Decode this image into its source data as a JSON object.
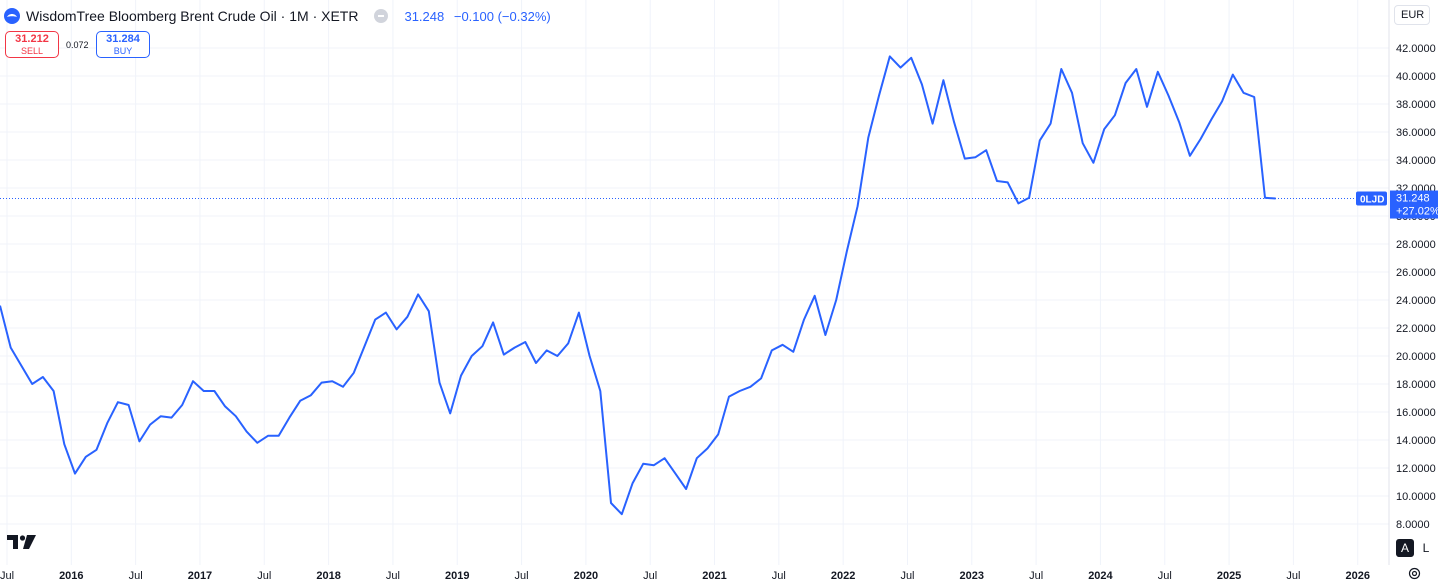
{
  "header": {
    "title": "WisdomTree Bloomberg Brent Crude Oil · 1M · XETR",
    "price": "31.248",
    "change": "−0.100 (−0.32%)"
  },
  "trade": {
    "sell_price": "31.212",
    "sell_label": "SELL",
    "spread": "0.072",
    "buy_price": "31.284",
    "buy_label": "BUY"
  },
  "currency": "EUR",
  "scale_buttons": {
    "auto": "A",
    "log": "L"
  },
  "colors": {
    "line": "#2962ff",
    "grid": "#f0f3fa",
    "sell": "#f23645"
  },
  "chart_data": {
    "type": "line",
    "interval": "1M",
    "x_ticks": [
      "Jul",
      "2016",
      "Jul",
      "2017",
      "Jul",
      "2018",
      "Jul",
      "2019",
      "Jul",
      "2020",
      "Jul",
      "2021",
      "Jul",
      "2022",
      "Jul",
      "2023",
      "Jul",
      "2024",
      "Jul",
      "2025",
      "Jul",
      "2026"
    ],
    "x_tick_bold": [
      false,
      true,
      false,
      true,
      false,
      true,
      false,
      true,
      false,
      true,
      false,
      true,
      false,
      true,
      false,
      true,
      false,
      true,
      false,
      true,
      false,
      true
    ],
    "y_ticks": [
      "8.0000",
      "10.0000",
      "12.0000",
      "14.0000",
      "16.0000",
      "18.0000",
      "20.0000",
      "22.0000",
      "24.0000",
      "26.0000",
      "28.0000",
      "30.0000",
      "32.0000",
      "34.0000",
      "36.0000",
      "38.0000",
      "40.0000",
      "42.0000"
    ],
    "ylim": [
      8,
      42
    ],
    "start": "2015-07",
    "series": [
      {
        "values": [
          23.6,
          20.6,
          19.3,
          18.0,
          18.5,
          17.5,
          13.7,
          11.6,
          12.8,
          13.3,
          15.2,
          16.7,
          16.5,
          13.9,
          15.1,
          15.7,
          15.6,
          16.5,
          18.2,
          17.5,
          17.5,
          16.4,
          15.7,
          14.6,
          13.8,
          14.3,
          14.3,
          15.6,
          16.8,
          17.2,
          18.1,
          18.2,
          17.8,
          18.8,
          20.7,
          22.6,
          23.1,
          21.9,
          22.8,
          24.4,
          23.2,
          18.1,
          15.9,
          18.6,
          20.0,
          20.7,
          22.4,
          20.1,
          20.6,
          21.0,
          19.5,
          20.4,
          20.0,
          20.9,
          23.1,
          20.0,
          17.5,
          9.5,
          8.7,
          10.9,
          12.3,
          12.2,
          12.7,
          11.6,
          10.5,
          12.7,
          13.4,
          14.4,
          17.1,
          17.5,
          17.8,
          18.4,
          20.4,
          20.8,
          20.3,
          22.6,
          24.3,
          21.5,
          24.0,
          27.5,
          30.7,
          35.6,
          38.6,
          41.4,
          40.6,
          41.3,
          39.4,
          36.6,
          39.7,
          36.7,
          34.1,
          34.2,
          34.7,
          32.5,
          32.4,
          30.9,
          31.3,
          35.4,
          36.6,
          40.5,
          38.8,
          35.2,
          33.8,
          36.2,
          37.2,
          39.5,
          40.5,
          37.8,
          40.3,
          38.6,
          36.7,
          34.3,
          35.5,
          36.9,
          38.2,
          40.1,
          38.8,
          38.5,
          31.3,
          31.248
        ]
      }
    ],
    "last_value": {
      "symbol": "0LJD",
      "price": "31.248",
      "change": "+27.02%"
    }
  }
}
